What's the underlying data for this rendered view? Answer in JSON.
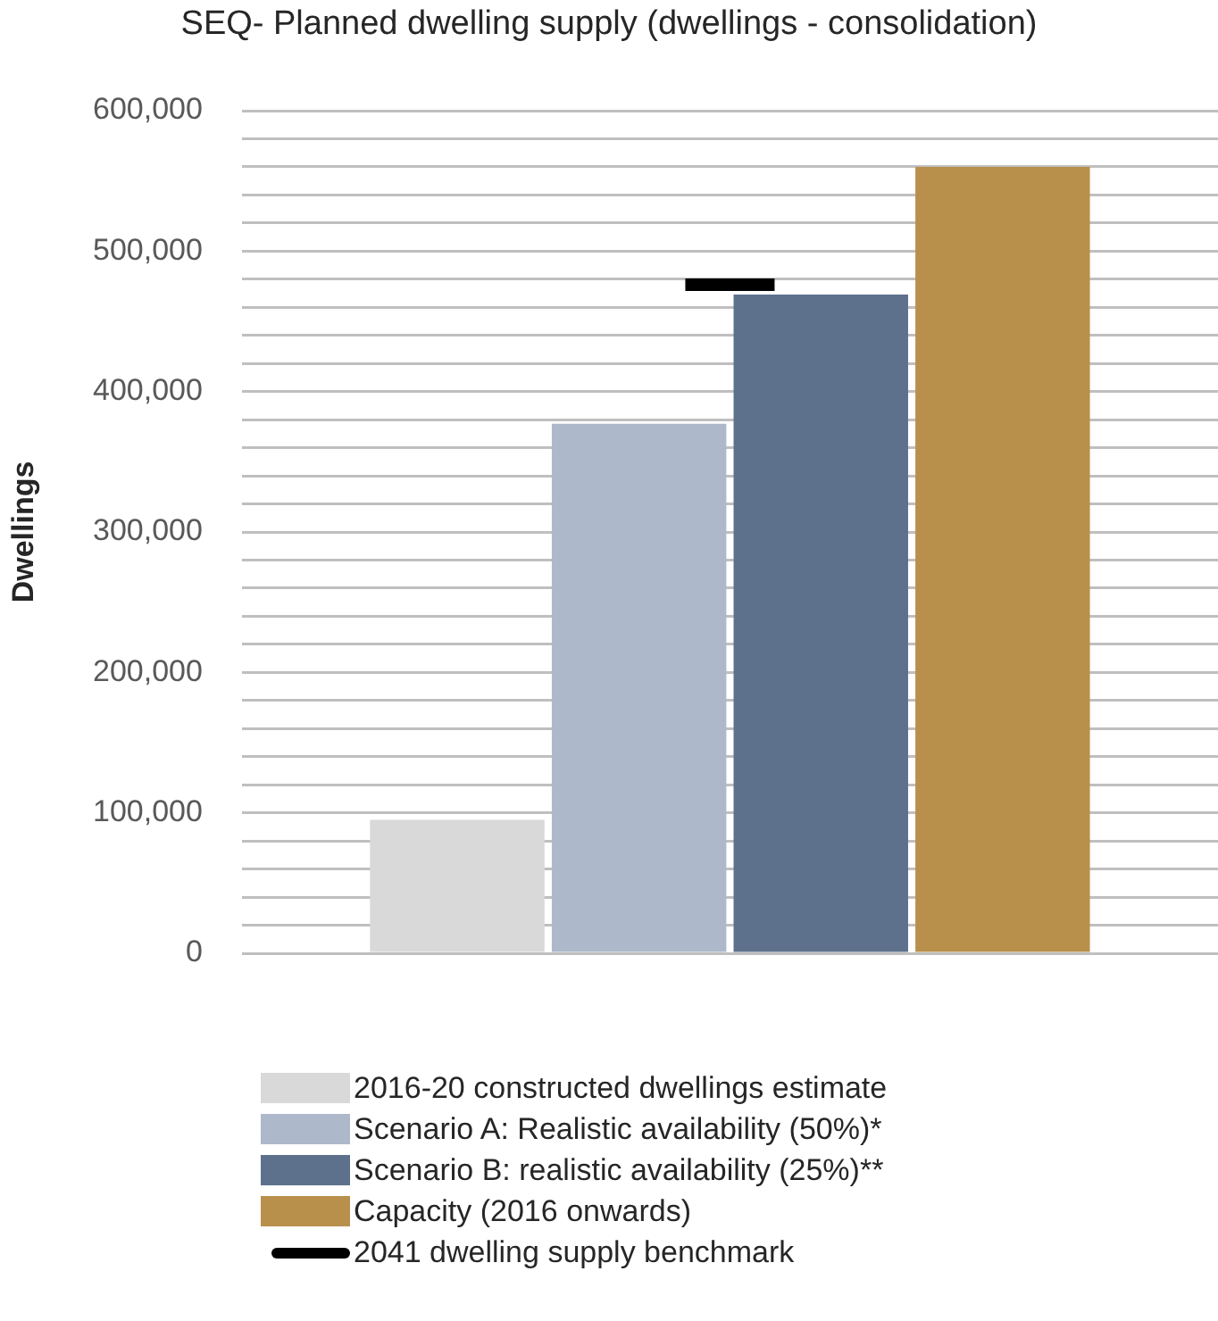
{
  "chart_data": {
    "type": "bar",
    "title": "SEQ- Planned dwelling supply (dwellings - consolidation)",
    "ylabel": "Dwellings",
    "categories": [
      null
    ],
    "series": [
      {
        "name": "2016-20 constructed dwellings estimate",
        "color": "#d9d9d9",
        "values": [
          95000
        ]
      },
      {
        "name": "Scenario A: Realistic availability (50%)*",
        "color": "#adb9ca",
        "values": [
          377000
        ]
      },
      {
        "name": "Scenario B: realistic availability (25%)**",
        "color": "#5d718c",
        "values": [
          469000
        ]
      },
      {
        "name": "Capacity (2016 onwards)",
        "color": "#b98f4c",
        "values": [
          560000
        ]
      }
    ],
    "ref_lines": [
      {
        "axis": "y",
        "value": 476000,
        "label": "2041 dwelling supply benchmark",
        "color": "#000000"
      }
    ],
    "ylim": [
      0,
      600000
    ],
    "yticks": [
      0,
      {
        "value": 20000,
        "label": null
      },
      {
        "value": 40000,
        "label": null
      },
      {
        "value": 60000,
        "label": null
      },
      {
        "value": 80000,
        "label": null
      },
      {
        "value": 100000,
        "label": "100,000"
      },
      {
        "value": 120000,
        "label": null
      },
      {
        "value": 140000,
        "label": null
      },
      {
        "value": 160000,
        "label": null
      },
      {
        "value": 180000,
        "label": null
      },
      {
        "value": 200000,
        "label": "200,000"
      },
      {
        "value": 220000,
        "label": null
      },
      {
        "value": 240000,
        "label": null
      },
      {
        "value": 260000,
        "label": null
      },
      {
        "value": 280000,
        "label": null
      },
      {
        "value": 300000,
        "label": "300,000"
      },
      {
        "value": 320000,
        "label": null
      },
      {
        "value": 340000,
        "label": null
      },
      {
        "value": 360000,
        "label": null
      },
      {
        "value": 380000,
        "label": null
      },
      {
        "value": 400000,
        "label": "400,000"
      },
      {
        "value": 420000,
        "label": null
      },
      {
        "value": 440000,
        "label": null
      },
      {
        "value": 460000,
        "label": null
      },
      {
        "value": 480000,
        "label": null
      },
      {
        "value": 500000,
        "label": "500,000"
      },
      {
        "value": 520000,
        "label": null
      },
      {
        "value": 540000,
        "label": null
      },
      {
        "value": 560000,
        "label": null
      },
      {
        "value": 580000,
        "label": null
      },
      {
        "value": 600000,
        "label": "600,000"
      }
    ],
    "grid": "y",
    "legend": "bottom",
    "tick_labels": "y"
  }
}
